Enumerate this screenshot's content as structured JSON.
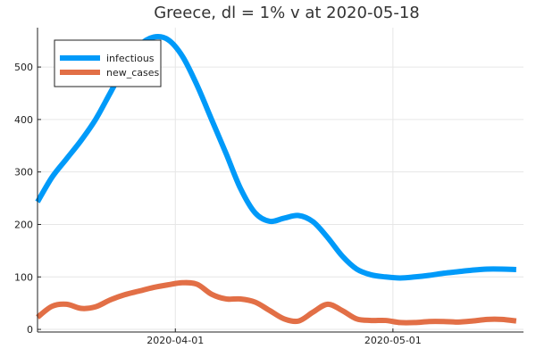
{
  "chart_data": {
    "type": "line",
    "title": "Greece,  dl = 1% v at 2020-05-18",
    "xlabel": "",
    "ylabel": "",
    "x_type": "date",
    "xlim": [
      "2020-03-13",
      "2020-05-19"
    ],
    "ylim": [
      -5,
      575
    ],
    "x_ticks": [
      "2020-04-01",
      "2020-05-01"
    ],
    "x_tick_labels": [
      "2020-04-01",
      "2020-05-01"
    ],
    "y_ticks": [
      0,
      100,
      200,
      300,
      400,
      500
    ],
    "y_tick_labels": [
      "0",
      "100",
      "200",
      "300",
      "400",
      "500"
    ],
    "grid": true,
    "legend_position": "top-left",
    "series": [
      {
        "name": "infectious",
        "color": "#009AF9",
        "x": [
          "2020-03-13",
          "2020-03-15",
          "2020-03-17",
          "2020-03-19",
          "2020-03-21",
          "2020-03-23",
          "2020-03-25",
          "2020-03-27",
          "2020-03-29",
          "2020-03-31",
          "2020-04-02",
          "2020-04-04",
          "2020-04-06",
          "2020-04-08",
          "2020-04-10",
          "2020-04-12",
          "2020-04-14",
          "2020-04-16",
          "2020-04-18",
          "2020-04-20",
          "2020-04-22",
          "2020-04-24",
          "2020-04-26",
          "2020-04-28",
          "2020-04-30",
          "2020-05-02",
          "2020-05-04",
          "2020-05-06",
          "2020-05-08",
          "2020-05-10",
          "2020-05-12",
          "2020-05-14",
          "2020-05-16",
          "2020-05-18"
        ],
        "y": [
          243,
          290,
          325,
          360,
          400,
          450,
          500,
          540,
          557,
          552,
          520,
          465,
          400,
          335,
          268,
          222,
          206,
          212,
          217,
          205,
          175,
          140,
          115,
          104,
          100,
          98,
          100,
          103,
          107,
          110,
          113,
          115,
          115,
          114
        ]
      },
      {
        "name": "new_cases",
        "color": "#E26F46",
        "x": [
          "2020-03-13",
          "2020-03-15",
          "2020-03-17",
          "2020-03-19",
          "2020-03-21",
          "2020-03-23",
          "2020-03-25",
          "2020-03-27",
          "2020-03-29",
          "2020-03-31",
          "2020-04-02",
          "2020-04-04",
          "2020-04-06",
          "2020-04-08",
          "2020-04-10",
          "2020-04-12",
          "2020-04-14",
          "2020-04-16",
          "2020-04-18",
          "2020-04-20",
          "2020-04-22",
          "2020-04-24",
          "2020-04-26",
          "2020-04-28",
          "2020-04-30",
          "2020-05-02",
          "2020-05-04",
          "2020-05-06",
          "2020-05-08",
          "2020-05-10",
          "2020-05-12",
          "2020-05-14",
          "2020-05-16",
          "2020-05-18"
        ],
        "y": [
          23,
          44,
          48,
          40,
          43,
          56,
          66,
          73,
          80,
          85,
          89,
          86,
          67,
          58,
          58,
          52,
          36,
          20,
          16,
          33,
          48,
          36,
          20,
          17,
          17,
          13,
          13,
          15,
          15,
          14,
          16,
          19,
          19,
          16
        ]
      }
    ]
  }
}
